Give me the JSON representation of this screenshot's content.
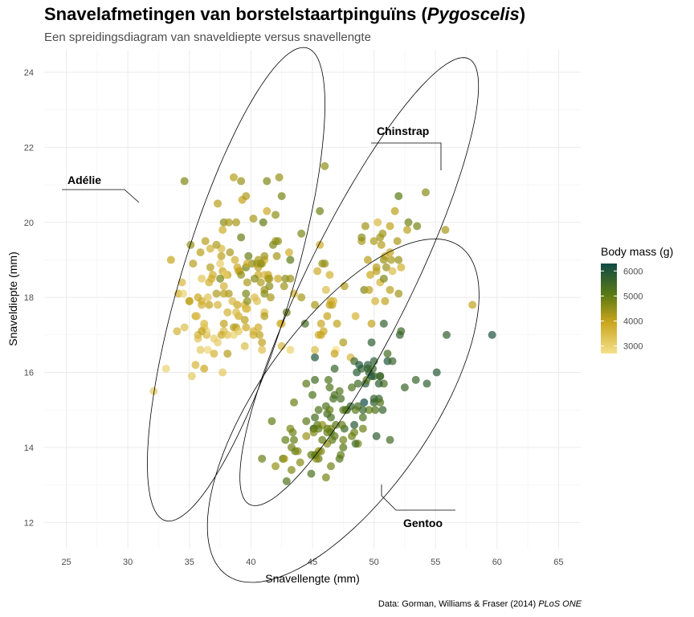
{
  "header": {
    "title_prefix": "Snavelafmetingen van borstelstaartpinguïns (",
    "title_italic": "Pygoscelis",
    "title_suffix": ")",
    "subtitle": "Een spreidingsdiagram van snaveldiepte versus snavellengte"
  },
  "caption": {
    "prefix": "Data: Gorman, Williams & Fraser (2014) ",
    "italic": "PLoS ONE"
  },
  "chart_data": {
    "type": "scatter",
    "xlabel": "Snavellengte (mm)",
    "ylabel": "Snaveldiepte (mm)",
    "xlim": [
      23.2,
      66.8
    ],
    "ylim": [
      11.3,
      24.6
    ],
    "xticks": [
      25,
      30,
      35,
      40,
      45,
      50,
      55,
      60,
      65
    ],
    "yticks": [
      12,
      14,
      16,
      18,
      20,
      22,
      24
    ],
    "grid": true,
    "color_legend": {
      "title": "Body mass (g)",
      "ticks": [
        3000,
        4000,
        5000,
        6000
      ],
      "range": [
        2700,
        6300
      ],
      "colors": [
        "#f5e08a",
        "#c9a51c",
        "#5a7a14",
        "#0f4a45"
      ]
    },
    "annotations": [
      {
        "label": "Adélie",
        "text_x": 26.0,
        "text_y": 21.2
      },
      {
        "label": "Chinstrap",
        "text_x": 52.8,
        "text_y": 22.5
      },
      {
        "label": "Gentoo",
        "text_x": 54.5,
        "text_y": 12.0
      }
    ],
    "ellipses": [
      {
        "species": "Adélie",
        "cx": 38.8,
        "cy": 18.35,
        "rx": 9.0,
        "ry": 3.3,
        "angle_deg": 40
      },
      {
        "species": "Chinstrap",
        "cx": 48.8,
        "cy": 18.42,
        "rx": 11.1,
        "ry": 2.55,
        "angle_deg": 30
      },
      {
        "species": "Gentoo",
        "cx": 47.5,
        "cy": 14.98,
        "rx": 11.5,
        "ry": 3.25,
        "angle_deg": 17
      }
    ],
    "series": [
      {
        "name": "Adélie",
        "x": [
          39.1,
          39.5,
          40.3,
          36.7,
          39.3,
          38.9,
          39.2,
          34.1,
          42.0,
          37.8,
          37.8,
          41.1,
          38.6,
          34.6,
          36.6,
          38.7,
          42.5,
          34.4,
          46.0,
          37.8,
          37.7,
          35.9,
          38.2,
          38.8,
          35.3,
          40.6,
          40.5,
          37.9,
          40.5,
          39.5,
          37.2,
          39.5,
          40.9,
          36.4,
          39.2,
          38.8,
          42.2,
          37.6,
          39.8,
          36.5,
          40.8,
          36.0,
          44.1,
          37.0,
          39.6,
          41.1,
          37.5,
          36.0,
          42.3,
          39.6,
          40.1,
          35.0,
          42.0,
          34.5,
          41.4,
          39.0,
          40.6,
          36.5,
          37.6,
          35.7,
          41.3,
          37.6,
          41.1,
          36.4,
          41.6,
          35.5,
          41.1,
          35.9,
          41.8,
          33.5,
          39.7,
          39.6,
          45.8,
          35.5,
          42.8,
          40.9,
          37.2,
          36.2,
          42.1,
          34.6,
          42.9,
          36.7,
          35.1,
          37.3,
          41.3,
          36.3,
          36.9,
          38.3,
          38.9,
          35.7,
          41.1,
          34.0,
          39.6,
          36.2,
          40.8,
          38.1,
          40.3,
          33.1,
          43.2,
          35.0,
          41.0,
          37.7,
          37.8,
          37.9,
          39.7,
          38.6,
          38.2,
          38.1,
          43.2,
          38.1,
          45.6,
          39.7,
          42.2,
          39.6,
          42.7,
          38.6,
          37.3,
          35.7,
          41.1,
          36.2,
          37.7,
          40.2,
          41.4,
          35.2,
          40.6,
          38.8,
          41.5,
          39.0,
          44.1,
          38.5,
          43.1,
          36.8,
          37.5,
          38.1,
          41.1,
          35.6,
          40.2,
          37.0,
          39.7,
          40.2,
          40.6,
          32.1,
          40.7,
          37.3,
          39.0,
          39.2,
          36.6,
          36.0,
          37.8,
          36.0,
          41.5
        ],
        "y": [
          18.7,
          17.4,
          18.0,
          19.3,
          20.6,
          17.8,
          19.6,
          18.1,
          20.2,
          17.1,
          17.3,
          17.6,
          21.2,
          21.1,
          17.8,
          19.0,
          20.7,
          18.4,
          21.5,
          18.3,
          18.7,
          19.2,
          18.1,
          17.2,
          18.9,
          18.6,
          17.9,
          18.6,
          18.9,
          16.7,
          18.1,
          17.8,
          18.9,
          17.0,
          21.1,
          20.0,
          18.5,
          19.3,
          19.1,
          18.0,
          18.4,
          18.5,
          19.7,
          16.9,
          18.8,
          19.0,
          18.9,
          17.9,
          21.2,
          17.7,
          18.9,
          17.9,
          19.5,
          18.1,
          18.6,
          17.5,
          18.8,
          16.6,
          19.1,
          16.9,
          21.1,
          17.0,
          18.2,
          17.1,
          18.0,
          16.2,
          19.1,
          16.6,
          19.4,
          19.0,
          18.4,
          17.2,
          18.9,
          17.5,
          18.5,
          16.8,
          19.4,
          16.1,
          19.1,
          17.2,
          17.6,
          18.8,
          19.4,
          17.8,
          20.3,
          19.5,
          18.6,
          19.2,
          18.8,
          18.0,
          18.1,
          17.1,
          18.1,
          17.3,
          18.9,
          18.6,
          18.5,
          16.1,
          18.5,
          17.9,
          20.0,
          16.0,
          20.0,
          18.6,
          18.9,
          17.2,
          20.0,
          17.0,
          19.0,
          16.5,
          20.3,
          17.7,
          19.5,
          20.7,
          18.3,
          17.0,
          20.5,
          17.0,
          18.6,
          17.2,
          19.8,
          17.0,
          18.5,
          15.9,
          19.0,
          17.6,
          18.3,
          17.1,
          18.0,
          17.9,
          19.2,
          18.5,
          18.5,
          17.6,
          17.5,
          17.5,
          20.1,
          16.5,
          17.9,
          17.1,
          17.2,
          15.5,
          17.0,
          16.8,
          18.7,
          18.6,
          18.4,
          17.8,
          18.1,
          17.1,
          18.5
        ],
        "body_mass": [
          3750,
          3800,
          3250,
          3450,
          3650,
          3625,
          4675,
          3475,
          4250,
          3300,
          3700,
          3200,
          3800,
          4400,
          3700,
          3450,
          4500,
          3325,
          4200,
          3400,
          3600,
          3800,
          3950,
          3800,
          3800,
          3550,
          3200,
          3150,
          3950,
          3250,
          3900,
          3300,
          3900,
          3325,
          4150,
          3950,
          3550,
          3300,
          4650,
          3150,
          3900,
          3100,
          4400,
          3000,
          4600,
          3425,
          2975,
          3450,
          4150,
          3500,
          4300,
          3450,
          4050,
          2900,
          3700,
          3550,
          3800,
          2850,
          3750,
          3150,
          4400,
          3600,
          4050,
          2850,
          3950,
          3350,
          4100,
          3050,
          4450,
          3600,
          3900,
          3550,
          4150,
          3700,
          4250,
          3700,
          3900,
          3550,
          4000,
          3200,
          4700,
          3800,
          4200,
          3350,
          3550,
          3800,
          3500,
          3950,
          3600,
          3550,
          4300,
          3400,
          4450,
          3300,
          4300,
          3700,
          4350,
          2900,
          4100,
          3725,
          4725,
          3075,
          4250,
          2925,
          3550,
          3750,
          3900,
          3175,
          4775,
          3825,
          4600,
          3200,
          4275,
          3900,
          4075,
          2900,
          3775,
          3350,
          3325,
          3150,
          3500,
          3450,
          3875,
          3050,
          4000,
          3275,
          4300,
          3050,
          4000,
          3325,
          3500,
          3500,
          4475,
          3425,
          3900,
          3175,
          3975,
          3400,
          4250,
          3400,
          3475,
          3050,
          3725,
          3000,
          3650,
          4250,
          3475,
          3450,
          3750,
          3700,
          4000
        ]
      },
      {
        "name": "Chinstrap",
        "x": [
          46.5,
          50.0,
          51.3,
          45.4,
          52.7,
          45.2,
          46.1,
          51.3,
          46.0,
          51.3,
          46.6,
          51.7,
          47.0,
          52.0,
          45.9,
          50.5,
          50.3,
          58.0,
          46.4,
          49.2,
          42.4,
          48.5,
          43.2,
          50.6,
          46.7,
          52.0,
          50.5,
          49.5,
          46.4,
          52.8,
          40.9,
          54.2,
          42.5,
          51.0,
          49.7,
          47.5,
          47.6,
          52.0,
          46.9,
          53.5,
          49.0,
          46.2,
          50.9,
          45.5,
          50.9,
          50.8,
          50.1,
          49.0,
          51.5,
          49.8,
          48.1,
          51.4,
          45.7,
          50.7,
          42.5,
          52.2,
          45.2,
          49.3,
          50.2,
          45.6,
          51.9,
          46.8,
          45.7,
          55.8,
          43.5,
          49.6,
          50.8,
          50.2
        ],
        "y": [
          17.9,
          19.5,
          19.2,
          18.7,
          19.8,
          17.8,
          18.2,
          18.2,
          18.9,
          19.9,
          17.8,
          20.3,
          17.3,
          18.1,
          17.1,
          19.6,
          20.0,
          17.8,
          18.6,
          18.2,
          17.3,
          17.5,
          16.6,
          19.4,
          17.9,
          19.0,
          18.4,
          19.0,
          17.8,
          20.0,
          16.6,
          20.8,
          16.7,
          18.8,
          18.6,
          16.8,
          18.3,
          20.7,
          16.6,
          19.9,
          19.5,
          17.5,
          19.1,
          17.0,
          17.9,
          18.5,
          17.9,
          19.6,
          18.7,
          17.3,
          16.4,
          19.0,
          17.3,
          19.7,
          17.3,
          18.8,
          16.6,
          19.9,
          18.8,
          19.4,
          19.5,
          16.5,
          17.0,
          19.8,
          18.1,
          18.2,
          19.0,
          18.7
        ],
        "body_mass": [
          3500,
          3900,
          3650,
          3525,
          3725,
          3950,
          3250,
          3750,
          4150,
          3700,
          3800,
          3775,
          3700,
          4050,
          3575,
          4050,
          3300,
          3700,
          3450,
          4400,
          3600,
          3400,
          2900,
          3800,
          3300,
          4150,
          3400,
          3800,
          3700,
          4550,
          3200,
          4300,
          3350,
          4100,
          3600,
          3900,
          3850,
          4800,
          2700,
          4500,
          3950,
          3650,
          3550,
          3500,
          3675,
          4450,
          3400,
          4300,
          3250,
          3675,
          3325,
          3950,
          3600,
          4050,
          3350,
          3450,
          3250,
          4050,
          3800,
          3525,
          3950,
          3650,
          3650,
          4000,
          3400,
          3775,
          4100,
          3775
        ]
      },
      {
        "name": "Gentoo",
        "x": [
          46.1,
          50.0,
          48.7,
          50.0,
          47.6,
          46.5,
          45.4,
          46.7,
          43.3,
          46.8,
          40.9,
          49.0,
          45.5,
          48.4,
          45.8,
          49.3,
          42.0,
          49.2,
          46.2,
          48.7,
          50.2,
          45.1,
          46.5,
          46.3,
          42.9,
          46.1,
          44.5,
          47.8,
          48.2,
          50.0,
          47.3,
          42.8,
          45.1,
          59.6,
          49.1,
          48.4,
          42.6,
          44.4,
          44.0,
          48.7,
          42.7,
          49.6,
          45.3,
          49.6,
          50.5,
          43.6,
          45.5,
          50.5,
          44.9,
          45.2,
          46.6,
          48.5,
          45.1,
          50.1,
          46.5,
          45.0,
          43.8,
          45.5,
          43.2,
          50.4,
          45.3,
          46.2,
          45.7,
          54.3,
          45.8,
          49.8,
          46.2,
          49.5,
          43.5,
          50.7,
          47.7,
          46.4,
          48.2,
          46.5,
          46.4,
          48.6,
          47.5,
          51.1,
          45.2,
          45.2,
          49.1,
          52.5,
          47.4,
          50.0,
          44.9,
          50.8,
          43.4,
          51.3,
          47.5,
          52.1,
          47.5,
          52.2,
          45.5,
          49.5,
          44.5,
          50.8,
          49.4,
          46.9,
          48.4,
          51.1,
          48.5,
          55.9,
          47.2,
          49.1,
          47.3,
          46.8,
          41.7,
          53.4,
          43.3,
          48.1,
          50.5,
          49.8,
          43.5,
          51.5,
          46.2,
          55.1,
          44.5,
          48.8,
          47.2,
          46.8,
          50.4,
          45.2,
          49.9
        ],
        "y": [
          13.2,
          16.3,
          14.1,
          15.2,
          14.5,
          13.5,
          14.6,
          15.3,
          13.4,
          15.4,
          13.7,
          16.1,
          13.7,
          14.6,
          14.6,
          15.7,
          13.5,
          15.2,
          14.5,
          15.1,
          14.3,
          14.5,
          14.5,
          15.8,
          13.1,
          15.1,
          14.3,
          15.0,
          14.3,
          15.3,
          15.3,
          14.2,
          14.5,
          17.0,
          14.8,
          16.3,
          13.7,
          17.3,
          13.6,
          15.7,
          13.7,
          16.0,
          13.7,
          15.0,
          15.9,
          13.9,
          13.9,
          15.9,
          13.3,
          15.8,
          14.2,
          14.1,
          14.4,
          15.0,
          14.4,
          15.4,
          13.9,
          15.0,
          14.5,
          15.3,
          13.8,
          14.9,
          13.9,
          15.7,
          14.2,
          16.8,
          14.4,
          16.2,
          14.2,
          15.0,
          15.0,
          15.6,
          15.6,
          14.8,
          15.0,
          16.0,
          14.2,
          16.3,
          13.8,
          16.4,
          14.5,
          15.6,
          14.6,
          15.9,
          13.8,
          17.3,
          14.4,
          14.2,
          14.0,
          17.0,
          15.0,
          17.1,
          14.5,
          16.1,
          14.7,
          15.7,
          15.8,
          14.6,
          14.4,
          16.5,
          15.0,
          17.0,
          15.5,
          15.0,
          13.8,
          16.1,
          14.7,
          15.8,
          14.0,
          15.1,
          15.2,
          15.9,
          15.2,
          16.3,
          14.1,
          16.0,
          15.7,
          16.2,
          13.7,
          14.3,
          15.7,
          14.8,
          16.1
        ],
        "body_mass": [
          4500,
          5700,
          4450,
          5700,
          5400,
          4550,
          4800,
          5200,
          4400,
          5150,
          4650,
          5550,
          4650,
          5850,
          4200,
          5850,
          4150,
          6300,
          4800,
          5350,
          5700,
          5000,
          4400,
          5050,
          5000,
          5100,
          4100,
          5650,
          4600,
          5550,
          5250,
          4700,
          5050,
          6050,
          5150,
          5400,
          4950,
          5250,
          4350,
          5350,
          3950,
          5700,
          4300,
          4750,
          5550,
          4900,
          4200,
          5400,
          5100,
          5300,
          4850,
          5300,
          4400,
          5000,
          4900,
          5050,
          4300,
          5000,
          4450,
          5550,
          4200,
          5300,
          4400,
          5650,
          4700,
          5700,
          4650,
          5800,
          4700,
          5550,
          4750,
          5000,
          5100,
          5200,
          4700,
          5800,
          4600,
          6000,
          4750,
          5950,
          4625,
          5450,
          4725,
          5350,
          4750,
          5600,
          4600,
          5300,
          4875,
          5550,
          4950,
          5400,
          4750,
          5650,
          4850,
          5200,
          4925,
          4875,
          4625,
          5250,
          4850,
          5600,
          4975,
          5500,
          4725,
          5500,
          4700,
          5500,
          4575,
          5500,
          5000,
          5950,
          4650,
          5500,
          4375,
          5850,
          4875,
          6000,
          4925,
          4850,
          5750,
          5200,
          5400
        ]
      }
    ]
  }
}
